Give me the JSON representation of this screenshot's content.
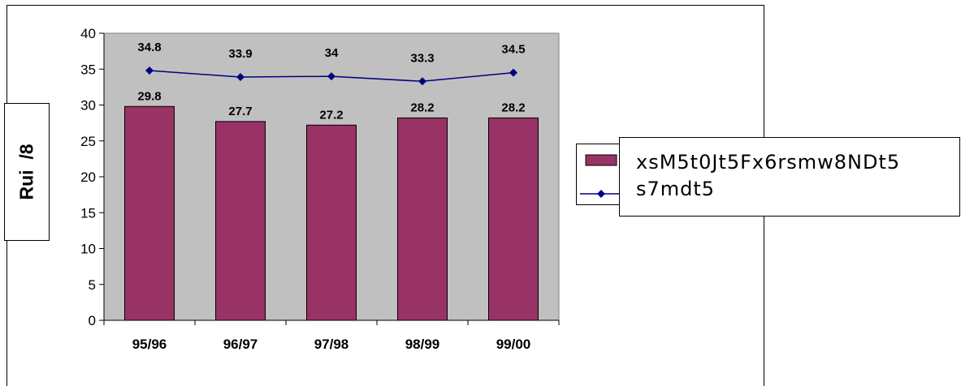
{
  "chart_data": {
    "type": "bar",
    "categories": [
      "95/96",
      "96/97",
      "97/98",
      "98/99",
      "99/00"
    ],
    "series": [
      {
        "name": "xsM5t0Jt5Fx6rsmw8NDt5",
        "type": "bar",
        "values": [
          29.8,
          27.7,
          27.2,
          28.2,
          28.2
        ],
        "color": "#993366"
      },
      {
        "name": "s7mdt5",
        "type": "line",
        "values": [
          34.8,
          33.9,
          34,
          33.3,
          34.5
        ],
        "color": "#000080"
      }
    ],
    "bar_labels": [
      "29.8",
      "27.7",
      "27.2",
      "28.2",
      "28.2"
    ],
    "line_labels": [
      "34.8",
      "33.9",
      "34",
      "33.3",
      "34.5"
    ],
    "yticks": [
      "0",
      "5",
      "10",
      "15",
      "20",
      "25",
      "30",
      "35",
      "40"
    ],
    "ylabel": "Rui  /8",
    "xlabel": "",
    "title": "",
    "ylim": [
      0,
      40
    ],
    "grid": false,
    "plot_background": "#c0c0c0",
    "legend_position": "right"
  }
}
